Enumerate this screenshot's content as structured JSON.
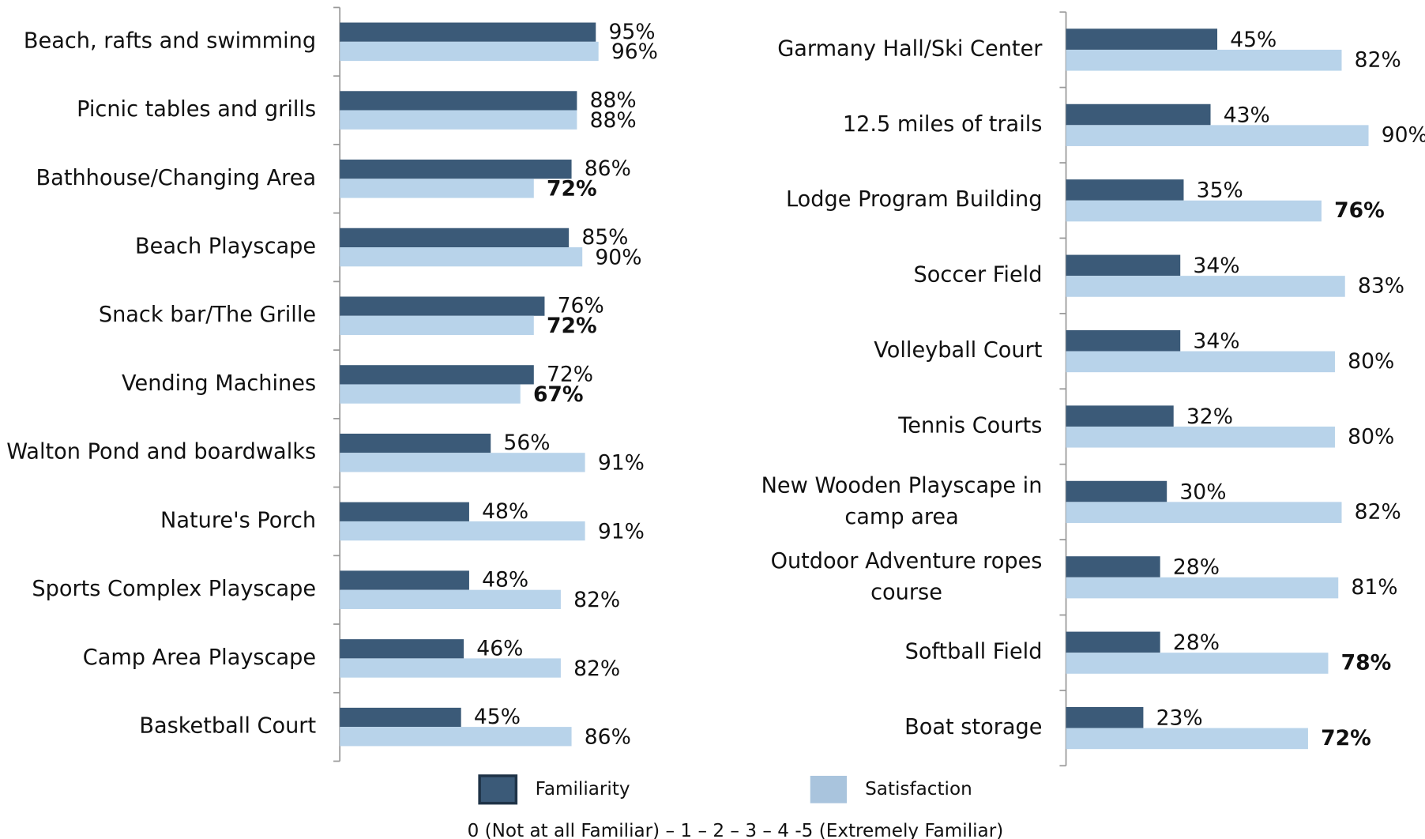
{
  "chart_data": [
    {
      "type": "bar",
      "orientation": "horizontal",
      "categories": [
        "Beach, rafts and swimming",
        "Picnic tables and grills",
        "Bathhouse/Changing Area",
        "Beach Playscape",
        "Snack bar/The Grille",
        "Vending Machines",
        "Walton Pond and boardwalks",
        "Nature's Porch",
        "Sports Complex Playscape",
        "Camp Area Playscape",
        "Basketball Court"
      ],
      "series": [
        {
          "name": "Familiarity",
          "color": "#3b5a78",
          "values": [
            95,
            88,
            86,
            85,
            76,
            72,
            56,
            48,
            48,
            46,
            45
          ],
          "value_labels": [
            "95%",
            "88%",
            "86%",
            "85%",
            "76%",
            "72%",
            "56%",
            "48%",
            "48%",
            "46%",
            "45%"
          ],
          "value_label_bold": [
            false,
            false,
            false,
            false,
            false,
            false,
            false,
            false,
            false,
            false,
            false
          ]
        },
        {
          "name": "Satisfaction",
          "color": "#b8d3ea",
          "values": [
            96,
            88,
            72,
            90,
            72,
            67,
            91,
            91,
            82,
            82,
            86
          ],
          "value_labels": [
            "96%",
            "88%",
            "72%",
            "90%",
            "72%",
            "67%",
            "91%",
            "91%",
            "82%",
            "82%",
            "86%"
          ],
          "value_label_bold": [
            false,
            false,
            true,
            false,
            true,
            true,
            false,
            false,
            false,
            false,
            false
          ]
        }
      ],
      "xlim": [
        0,
        100
      ]
    },
    {
      "type": "bar",
      "orientation": "horizontal",
      "categories": [
        "Garmany Hall/Ski Center",
        "12.5 miles of trails",
        "Lodge Program Building",
        "Soccer Field",
        "Volleyball Court",
        "Tennis Courts",
        "New Wooden Playscape in camp area",
        "Outdoor Adventure ropes course",
        "Softball Field",
        "Boat storage"
      ],
      "series": [
        {
          "color": "#3b5a78",
          "values": [
            45,
            43,
            35,
            34,
            34,
            32,
            30,
            28,
            28,
            23
          ],
          "value_labels": [
            "45%",
            "43%",
            "35%",
            "34%",
            "34%",
            "32%",
            "30%",
            "28%",
            "28%",
            "23%"
          ],
          "value_label_bold": [
            false,
            false,
            false,
            false,
            false,
            false,
            false,
            false,
            false,
            false
          ]
        },
        {
          "color": "#b8d3ea",
          "values": [
            82,
            90,
            76,
            83,
            80,
            80,
            82,
            81,
            78,
            72
          ],
          "value_labels": [
            "82%",
            "90%",
            "76%",
            "83%",
            "80%",
            "80%",
            "82%",
            "81%",
            "78%",
            "72%"
          ],
          "value_label_bold": [
            false,
            false,
            true,
            false,
            false,
            false,
            false,
            false,
            true,
            true
          ]
        }
      ],
      "xlim": [
        0,
        100
      ]
    }
  ],
  "footnote": "0 (Not at all Familiar) – 1 – 2 – 3 – 4 -5 (Extremely Familiar)"
}
